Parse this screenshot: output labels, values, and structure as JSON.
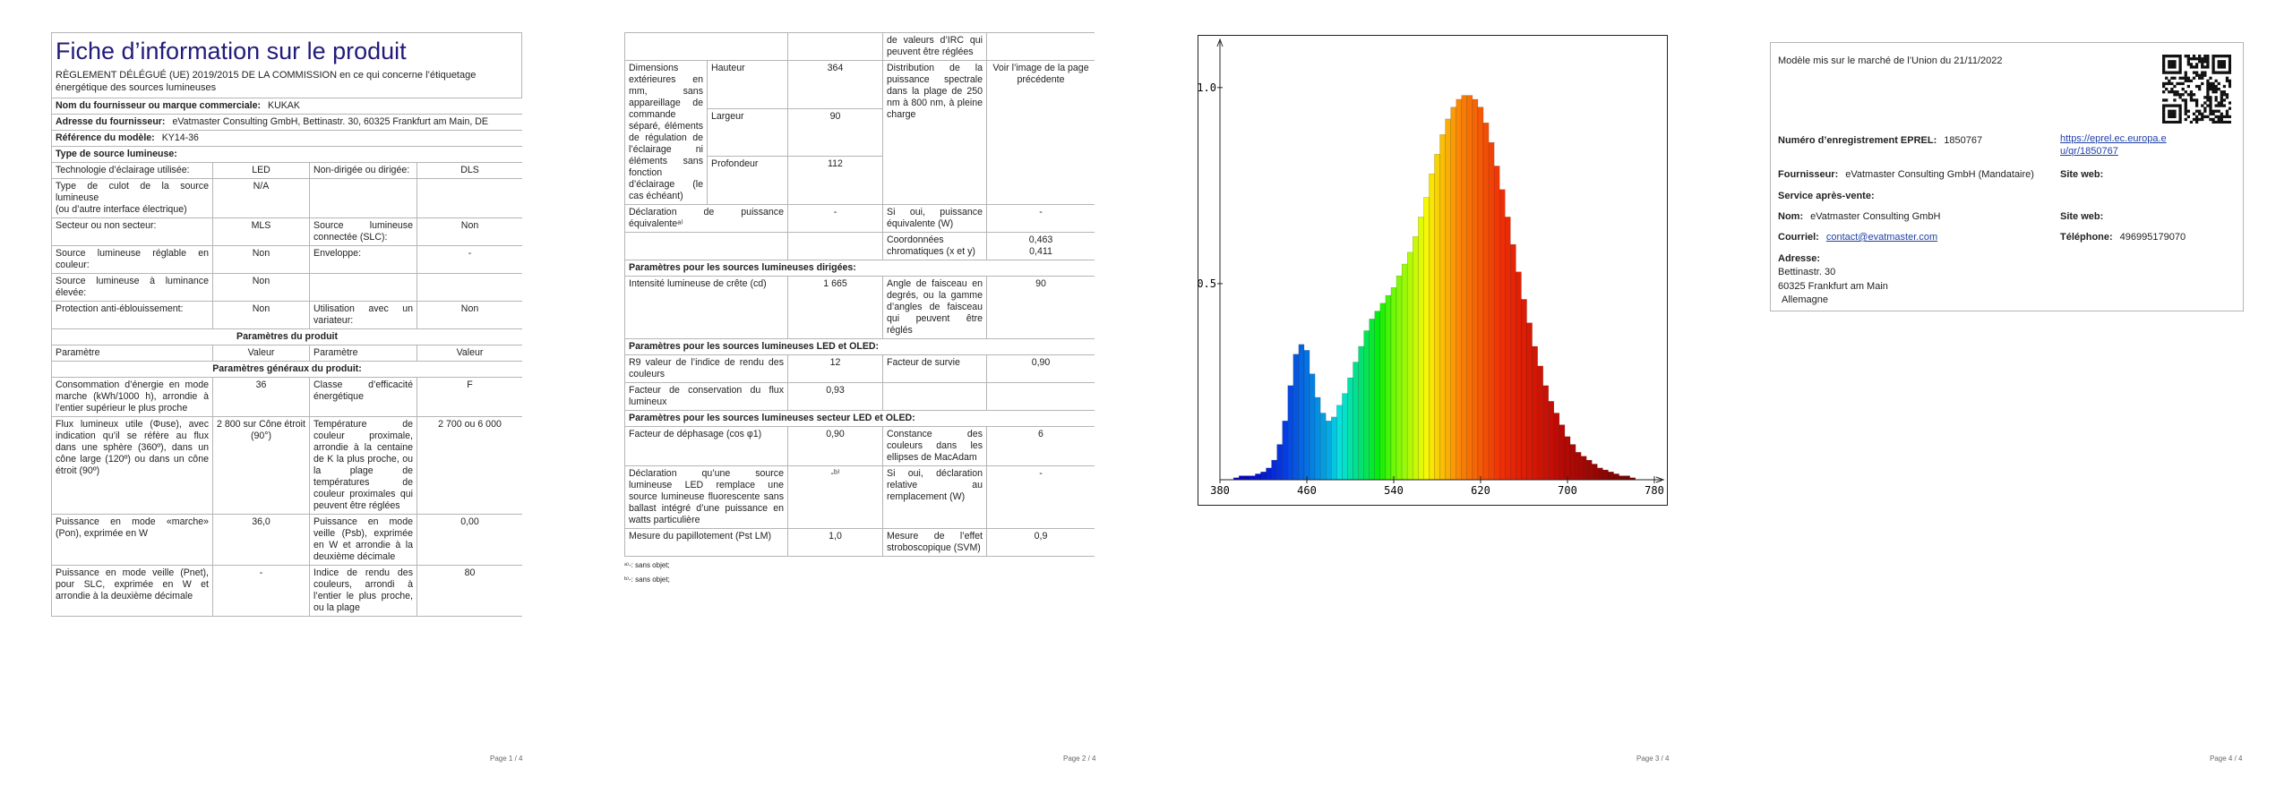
{
  "pages": [
    {
      "title": "Fiche d’information sur le produit",
      "subtitle": "RÈGLEMENT DÉLÉGUÉ (UE) 2019/2015 DE LA COMMISSION en ce qui concerne l’étiquetage énergétique des sources lumineuses",
      "rows": [
        {
          "field": "Nom du fournisseur ou marque commerciale:",
          "value": "KUKAK"
        },
        {
          "field": "Adresse du fournisseur:",
          "value": "eVatmaster Consulting GmbH, Bettinastr. 30, 60325 Frankfurt am Main, DE"
        },
        {
          "field": "Référence du modèle:",
          "value": "KY14-36"
        },
        {
          "heading": "Type de source lumineuse:"
        },
        {
          "cells": [
            "Technologie d’éclairage utilisée:",
            "LED",
            "Non-dirigée ou dirigée:",
            "DLS"
          ]
        },
        {
          "cells": [
            [
              "Type de culot de la source lumineuse",
              "(ou d’autre interface électrique)"
            ],
            "N/A",
            null,
            null
          ]
        },
        {
          "cells": [
            "Secteur ou non secteur:",
            "MLS",
            "Source lumineuse connectée (SLC):",
            "Non"
          ]
        },
        {
          "cells": [
            "Source lumineuse réglable en couleur:",
            "Non",
            "Enveloppe:",
            "-"
          ]
        },
        {
          "cells": [
            "Source lumineuse à luminance élevée:",
            "Non",
            null,
            null
          ]
        },
        {
          "cells": [
            "Protection anti-éblouissement:",
            "Non",
            "Utilisation avec un variateur:",
            "Non"
          ]
        },
        {
          "section": "Paramètres du produit"
        },
        {
          "cells": [
            "Paramètre",
            "Valeur",
            "Paramètre",
            "Valeur"
          ]
        },
        {
          "section": "Paramètres généraux du produit:"
        },
        {
          "cells": [
            "Consommation d’énergie en mode marche (kWh/1000 h), arrondie à l’entier supérieur le plus proche",
            "36",
            "Classe d’efficacité énergétique",
            "F"
          ]
        },
        {
          "cells": [
            "Flux lumineux utile (Φuse), avec indication qu’il se réfère au flux dans une sphère (360º), dans un cône large (120º) ou dans un cône étroit (90º)",
            "2 800 sur Cône étroit (90°)",
            "Température de couleur proximale, arrondie à la centaine de K la plus proche, ou la plage de températures de couleur proximales qui peuvent être réglées",
            "2 700 ou 6 000"
          ]
        },
        {
          "cells": [
            "Puissance en mode «marche» (Pon), exprimée en W",
            "36,0",
            "Puissance en mode veille (Psb), exprimée en W et arrondie à la deuxième décimale",
            "0,00"
          ]
        },
        {
          "cells": [
            "Puissance en mode veille (Pnet), pour SLC, exprimée en W et arrondie à la deuxième décimale",
            "-",
            "Indice de rendu des couleurs, arrondi à l’entier le plus proche, ou la plage",
            "80"
          ]
        }
      ],
      "page_number": "Page 1 / 4"
    },
    {
      "rows": [
        {
          "cells": [
            null,
            null,
            "de valeurs d’IRC qui peuvent être réglées",
            null
          ]
        },
        {
          "dimensions": {
            "label": "Dimensions extérieures en mm, sans appareillage de commande séparé, éléments de régulation de l’éclairage ni éléments sans fonction d’éclairage (le cas échéant)",
            "items": [
              {
                "name": "Hauteur",
                "value": "364"
              },
              {
                "name": "Largeur",
                "value": "90"
              },
              {
                "name": "Profondeur",
                "value": "112"
              }
            ],
            "param": "Distribution de la puissance spectrale dans la plage de 250 nm à 800 nm, à pleine charge",
            "value": "Voir l’image de la page précédente"
          }
        },
        {
          "cells": [
            "Déclaration de puissance équivalenteᵃ⁾",
            "-",
            "Si oui, puissance équivalente (W)",
            "-"
          ]
        },
        {
          "cells": [
            null,
            null,
            "Coordonnées chromatiques (x et y)",
            [
              "0,463",
              "0,411"
            ]
          ]
        },
        {
          "heading": "Paramètres pour les sources lumineuses dirigées:"
        },
        {
          "cells": [
            "Intensité lumineuse de crête (cd)",
            "1 665",
            "Angle de faisceau en degrés, ou la gamme d’angles de faisceau qui peuvent être réglés",
            "90"
          ]
        },
        {
          "heading": "Paramètres pour les sources lumineuses LED et OLED:"
        },
        {
          "cells": [
            "R9 valeur de l’indice de rendu des couleurs",
            "12",
            "Facteur de survie",
            "0,90"
          ]
        },
        {
          "cells": [
            "Facteur de conservation du flux lumineux",
            "0,93",
            null,
            null
          ]
        },
        {
          "heading": "Paramètres pour les sources lumineuses secteur LED et OLED:"
        },
        {
          "cells": [
            "Facteur de déphasage (cos φ1)",
            "0,90",
            "Constance des couleurs dans les ellipses de MacAdam",
            "6"
          ]
        },
        {
          "cells": [
            "Déclaration qu’une source lumineuse LED remplace une source lumineuse fluorescente sans ballast intégré d’une puissance en watts particulière",
            "-ᵇ⁾",
            "Si oui, déclaration relative au remplacement (W)",
            "-"
          ]
        },
        {
          "cells": [
            "Mesure du papillotement (Pst LM)",
            "1,0",
            "Mesure de l’effet stroboscopique (SVM)",
            "0,9"
          ]
        }
      ],
      "footnotes": [
        "ᵃ⁾-: sans objet;",
        "ᵇ⁾-: sans objet;"
      ],
      "page_number": "Page 2 / 4"
    },
    {
      "spectrum": {
        "type": "bar",
        "x": [
          380,
          385,
          390,
          395,
          400,
          405,
          410,
          415,
          420,
          425,
          430,
          435,
          440,
          445,
          450,
          455,
          460,
          465,
          470,
          475,
          480,
          485,
          490,
          495,
          500,
          505,
          510,
          515,
          520,
          525,
          530,
          535,
          540,
          545,
          550,
          555,
          560,
          565,
          570,
          575,
          580,
          585,
          590,
          595,
          600,
          605,
          610,
          615,
          620,
          625,
          630,
          635,
          640,
          645,
          650,
          655,
          660,
          665,
          670,
          675,
          680,
          685,
          690,
          695,
          700,
          705,
          710,
          715,
          720,
          725,
          730,
          735,
          740,
          745,
          750,
          755,
          760,
          765,
          770,
          775,
          780
        ],
        "values": [
          0,
          0,
          0,
          0.005,
          0.01,
          0.01,
          0.01,
          0.015,
          0.02,
          0.03,
          0.05,
          0.09,
          0.15,
          0.24,
          0.32,
          0.345,
          0.33,
          0.27,
          0.21,
          0.17,
          0.15,
          0.16,
          0.19,
          0.22,
          0.26,
          0.3,
          0.34,
          0.38,
          0.41,
          0.43,
          0.45,
          0.47,
          0.49,
          0.52,
          0.55,
          0.58,
          0.62,
          0.67,
          0.72,
          0.78,
          0.83,
          0.88,
          0.92,
          0.95,
          0.97,
          0.98,
          0.98,
          0.97,
          0.95,
          0.91,
          0.86,
          0.8,
          0.74,
          0.67,
          0.6,
          0.53,
          0.46,
          0.4,
          0.34,
          0.29,
          0.24,
          0.2,
          0.17,
          0.14,
          0.11,
          0.09,
          0.07,
          0.06,
          0.05,
          0.04,
          0.03,
          0.025,
          0.02,
          0.015,
          0.01,
          0.01,
          0.005,
          0,
          0,
          0,
          0
        ],
        "xlim": [
          380,
          780
        ],
        "ylim": [
          0,
          1.1
        ],
        "xticks": [
          380,
          460,
          540,
          620,
          700,
          780
        ],
        "yticks": [
          0.5,
          {
            "value": 1,
            "label": "1.0"
          }
        ]
      },
      "page_number": "Page 3 / 4"
    },
    {
      "market_date": "Modèle mis sur le marché de l’Union du 21/11/2022",
      "eprel_label": "Numéro d’enregistrement EPREL:",
      "eprel_number": "1850767",
      "eprel_link": "https://eprel.ec.europa.eu/qr/1850767",
      "supplier_label": "Fournisseur:",
      "supplier": "eVatmaster Consulting GmbH (Mandataire)",
      "website_label": "Site web:",
      "service_label": "Service après-vente:",
      "name_label": "Nom:",
      "name": "eVatmaster Consulting GmbH",
      "website_label_2": "Site web:",
      "email_label": "Courriel:",
      "email": "contact@evatmaster.com",
      "phone_label": "Téléphone:",
      "phone": "496995179070",
      "address_label": "Adresse:",
      "address": [
        "Bettinastr. 30",
        "60325 Frankfurt am Main",
        "Allemagne"
      ],
      "page_number": "Page 4 / 4"
    }
  ]
}
